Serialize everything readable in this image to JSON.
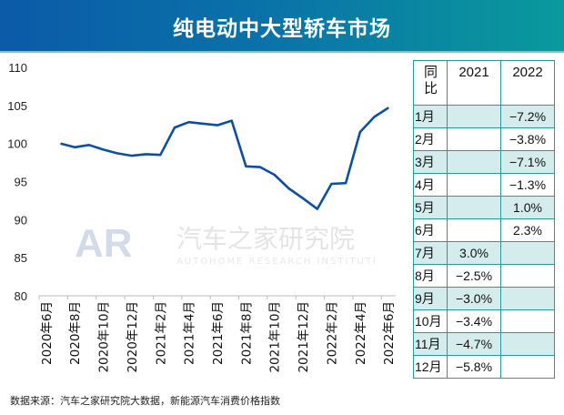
{
  "title": "纯电动中大型轿车市场",
  "footer": "数据来源：汽车之家研究院大数据，新能源汽车消费价格指数",
  "watermark": {
    "logo": "AR",
    "name": "汽车之家研究院",
    "subtitle": "AUTOHOME RESEARCH INSTITUTE"
  },
  "colors": {
    "line": "#0d4fa0",
    "table_border": "#2a9a98",
    "table_shade": "#d5ecec"
  },
  "chart_data": {
    "type": "line",
    "ylim": [
      80,
      110
    ],
    "yticks": [
      80,
      85,
      90,
      95,
      100,
      105,
      110
    ],
    "categories": [
      "2020年6月",
      "2020年7月",
      "2020年8月",
      "2020年9月",
      "2020年10月",
      "2020年11月",
      "2020年12月",
      "2021年1月",
      "2021年2月",
      "2021年3月",
      "2021年4月",
      "2021年5月",
      "2021年6月",
      "2021年7月",
      "2021年8月",
      "2021年9月",
      "2021年10月",
      "2021年11月",
      "2021年12月",
      "2022年1月",
      "2022年2月",
      "2022年3月",
      "2022年4月",
      "2022年5月",
      "2022年6月"
    ],
    "tick_labels": [
      "2020年6月",
      "2020年8月",
      "2020年10月",
      "2020年12月",
      "2021年2月",
      "2021年4月",
      "2021年6月",
      "2021年8月",
      "2021年10月",
      "2021年12月",
      "2022年2月",
      "2022年4月",
      "2022年6月"
    ],
    "values": [
      null,
      100.0,
      99.5,
      99.8,
      99.2,
      98.7,
      98.4,
      98.6,
      98.5,
      102.1,
      102.8,
      102.6,
      102.4,
      103.0,
      97.0,
      96.9,
      95.9,
      94.1,
      92.8,
      91.4,
      94.7,
      94.8,
      101.5,
      103.5,
      104.7
    ],
    "grid": false
  },
  "table": {
    "header": [
      "同\n比",
      "2021",
      "2022"
    ],
    "rows": [
      [
        "1月",
        "",
        "−7.2%"
      ],
      [
        "2月",
        "",
        "−3.8%"
      ],
      [
        "3月",
        "",
        "−7.1%"
      ],
      [
        "4月",
        "",
        "−1.3%"
      ],
      [
        "5月",
        "",
        "1.0%"
      ],
      [
        "6月",
        "",
        "2.3%"
      ],
      [
        "7月",
        "3.0%",
        ""
      ],
      [
        "8月",
        "−2.5%",
        ""
      ],
      [
        "9月",
        "−3.0%",
        ""
      ],
      [
        "10月",
        "−3.4%",
        ""
      ],
      [
        "11月",
        "−4.7%",
        ""
      ],
      [
        "12月",
        "−5.8%",
        ""
      ]
    ]
  }
}
